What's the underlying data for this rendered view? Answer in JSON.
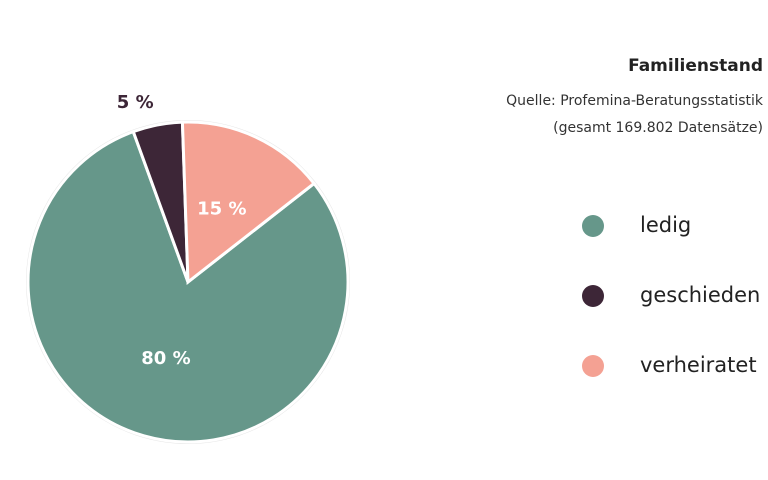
{
  "chart_data": {
    "type": "pie",
    "title": "Familienstand",
    "subtitle": [
      "Quelle: Profemina-Beratungsstatistik",
      "(gesamt 169.802 Datensätze)"
    ],
    "categories": [
      "ledig",
      "geschieden",
      "verheiratet"
    ],
    "values": [
      80,
      5,
      15
    ],
    "value_labels": [
      "80 %",
      "5 %",
      "15 %"
    ],
    "colors": [
      "#66978a",
      "#3d2637",
      "#f4a193"
    ]
  }
}
